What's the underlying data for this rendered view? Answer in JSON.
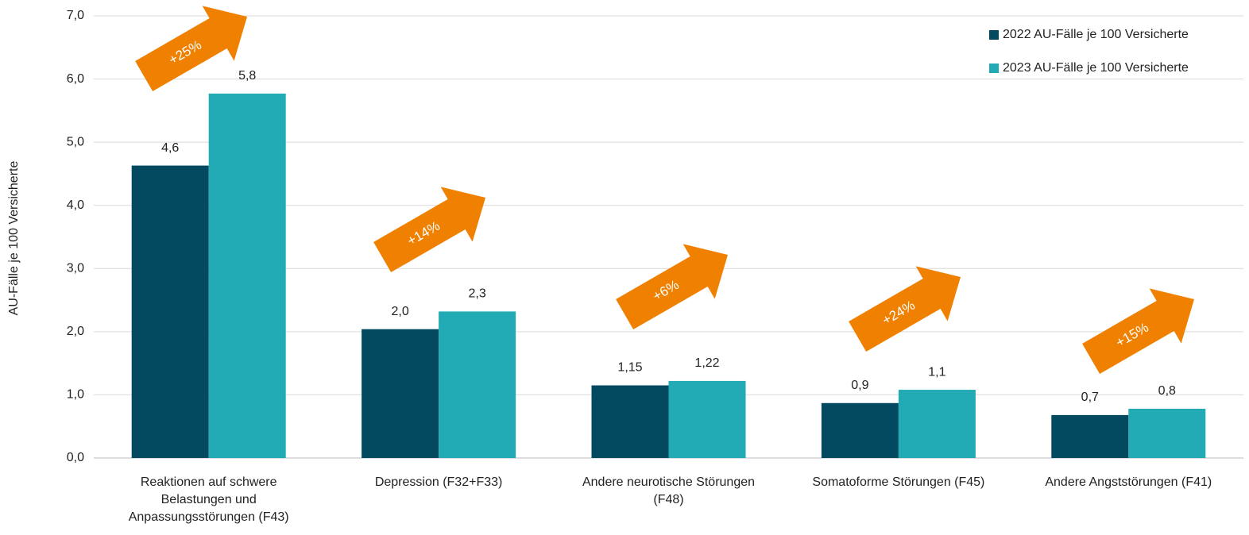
{
  "chart_data": {
    "type": "bar",
    "y_axis_label": "AU-Fälle je 100 Versicherte",
    "categories": [
      "Reaktionen auf schwere\nBelastungen und\nAnpassungsstörungen (F43)",
      "Depression (F32+F33)",
      "Andere neurotische Störungen\n(F48)",
      "Somatoforme Störungen (F45)",
      "Andere Angststörungen (F41)"
    ],
    "series": [
      {
        "name": "2022 AU-Fälle je 100 Versicherte",
        "color": "#034a60",
        "values": [
          4.63,
          2.04,
          1.15,
          0.87,
          0.68
        ],
        "value_labels": [
          "4,6",
          "2,0",
          "1,15",
          "0,9",
          "0,7"
        ]
      },
      {
        "name": "2023 AU-Fälle je 100 Versicherte",
        "color": "#22aab5",
        "values": [
          5.77,
          2.32,
          1.22,
          1.08,
          0.78
        ],
        "value_labels": [
          "5,8",
          "2,3",
          "1,22",
          "1,1",
          "0,8"
        ]
      }
    ],
    "annotations": [
      "+25%",
      "+14%",
      "+6%",
      "+24%",
      "+15%"
    ],
    "annotation_color": "#f08000",
    "ylim": [
      0,
      7
    ],
    "yticks": [
      {
        "value": 0,
        "label": "0,0"
      },
      {
        "value": 1,
        "label": "1,0"
      },
      {
        "value": 2,
        "label": "2,0"
      },
      {
        "value": 3,
        "label": "3,0"
      },
      {
        "value": 4,
        "label": "4,0"
      },
      {
        "value": 5,
        "label": "5,0"
      },
      {
        "value": 6,
        "label": "6,0"
      },
      {
        "value": 7,
        "label": "7,0"
      }
    ],
    "grid": true,
    "legend": "top-right"
  }
}
